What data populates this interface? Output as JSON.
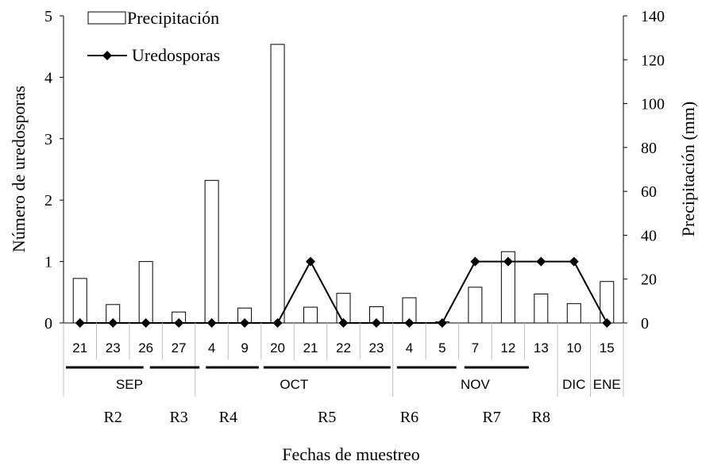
{
  "chart_data": {
    "type": "bar-line",
    "ylabel_left": "Número de uredosporas",
    "ylabel_right": "Precipitación (mm)",
    "xlabel": "Fechas de muestreo",
    "ylim_left": [
      0,
      5
    ],
    "yticks_left": [
      "0",
      "1",
      "2",
      "3",
      "4",
      "5"
    ],
    "ylim_right": [
      0,
      140
    ],
    "yticks_right": [
      "0",
      "20",
      "40",
      "60",
      "80",
      "100",
      "120",
      "140"
    ],
    "categories": [
      "21",
      "23",
      "26",
      "27",
      "4",
      "9",
      "20",
      "21",
      "22",
      "23",
      "4",
      "5",
      "7",
      "12",
      "13",
      "10",
      "15"
    ],
    "months": [
      {
        "label": "SEP",
        "start": 0,
        "end": 4
      },
      {
        "label": "OCT",
        "start": 4,
        "end": 10
      },
      {
        "label": "NOV",
        "start": 10,
        "end": 15
      },
      {
        "label": "DIC",
        "start": 15,
        "end": 16
      },
      {
        "label": "ENE",
        "start": 16,
        "end": 17
      }
    ],
    "stages": [
      {
        "label": "R2",
        "center": 1.5
      },
      {
        "label": "R3",
        "center": 3.5
      },
      {
        "label": "R4",
        "center": 5.0
      },
      {
        "label": "R5",
        "center": 8.0
      },
      {
        "label": "R6",
        "center": 10.5
      },
      {
        "label": "R7",
        "center": 13.0
      },
      {
        "label": "R8",
        "center": 14.5
      }
    ],
    "stage_lines": [
      {
        "start": 0,
        "end": 2.5
      },
      {
        "start": 2.55,
        "end": 4.2
      },
      {
        "start": 4.25,
        "end": 6.0
      },
      {
        "start": 6.0,
        "end": 10.0
      },
      {
        "start": 10.05,
        "end": 12.0
      },
      {
        "start": 12.1,
        "end": 14.2
      }
    ],
    "series": [
      {
        "name": "Precipitación",
        "kind": "bar",
        "axis": "right",
        "values": [
          20.3,
          8.4,
          28.0,
          5.0,
          65.0,
          6.8,
          127.0,
          7.2,
          13.5,
          7.4,
          11.5,
          0.5,
          16.3,
          32.5,
          13.2,
          8.8,
          18.9
        ]
      },
      {
        "name": "Uredosporas",
        "kind": "line",
        "axis": "left",
        "values": [
          0,
          0,
          0,
          0,
          0,
          0,
          0,
          1,
          0,
          0,
          0,
          0,
          1,
          1,
          1,
          1,
          0
        ]
      }
    ]
  }
}
